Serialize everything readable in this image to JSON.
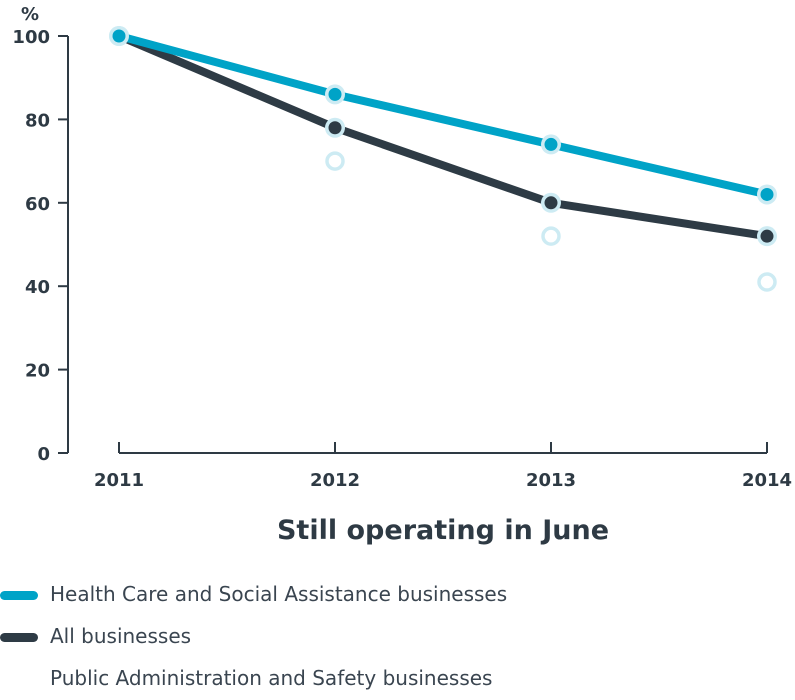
{
  "chart_data": {
    "type": "line",
    "title": "",
    "xlabel": "Still operating in June",
    "ylabel": "%",
    "categories": [
      "2011",
      "2012",
      "2013",
      "2014"
    ],
    "yticks": [
      "0",
      "20",
      "40",
      "60",
      "80",
      "100"
    ],
    "ylim": [
      0,
      100
    ],
    "grid": false,
    "legend_position": "bottom-left",
    "series": [
      {
        "name": "Health Care and Social Assistance businesses",
        "color": "#00a3c7",
        "style": "line",
        "values": [
          100,
          86,
          74,
          62
        ]
      },
      {
        "name": "All businesses",
        "color": "#2e3b45",
        "style": "line",
        "values": [
          100,
          78,
          60,
          52
        ]
      },
      {
        "name": "Public Administration and Safety businesses",
        "color": "#cdebf3",
        "style": "hollow-markers",
        "values": [
          null,
          70,
          52,
          41
        ]
      }
    ]
  }
}
